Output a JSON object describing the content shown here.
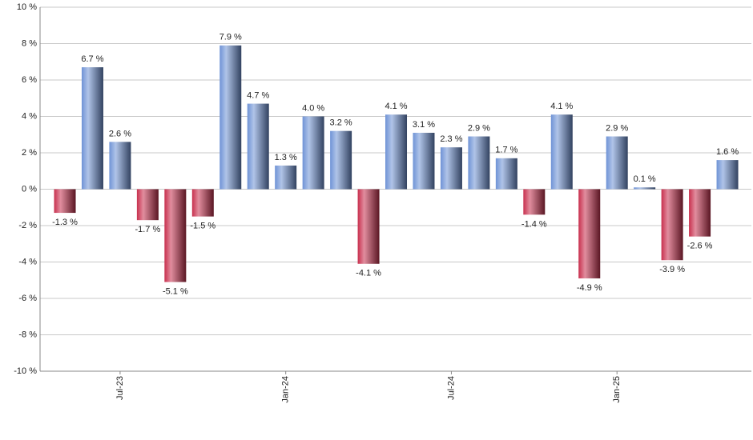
{
  "chart_data": {
    "type": "bar",
    "categories": [
      null,
      null,
      "Jul-23",
      null,
      null,
      null,
      null,
      null,
      "Jan-24",
      null,
      null,
      null,
      null,
      null,
      "Jul-24",
      null,
      null,
      null,
      null,
      null,
      "Jan-25",
      null,
      null,
      null,
      null
    ],
    "values": [
      -1.3,
      6.7,
      2.6,
      -1.7,
      -5.1,
      -1.5,
      7.9,
      4.7,
      1.3,
      4.0,
      3.2,
      -4.1,
      4.1,
      3.1,
      2.3,
      2.9,
      1.7,
      -1.4,
      4.1,
      -4.9,
      2.9,
      0.1,
      -3.9,
      -2.6,
      1.6
    ],
    "value_labels": [
      "-1.3 %",
      "6.7 %",
      "2.6 %",
      "-1.7 %",
      "-5.1 %",
      "-1.5 %",
      "7.9 %",
      "4.7 %",
      "1.3 %",
      "4.0 %",
      "3.2 %",
      "-4.1 %",
      "4.1 %",
      "3.1 %",
      "2.3 %",
      "2.9 %",
      "1.7 %",
      "-1.4 %",
      "4.1 %",
      "-4.9 %",
      "2.9 %",
      "0.1 %",
      "-3.9 %",
      "-2.6 %",
      "1.6 %"
    ],
    "positive_color": "#6f93d6",
    "negative_color": "#c8304e",
    "ylim": [
      -10,
      10
    ],
    "yticks": [
      {
        "value": -10,
        "label": "-10 %"
      },
      {
        "value": -8,
        "label": "-8 %"
      },
      {
        "value": -6,
        "label": "-6 %"
      },
      {
        "value": -4,
        "label": "-4 %"
      },
      {
        "value": -2,
        "label": "-2 %"
      },
      {
        "value": 0,
        "label": "0 %"
      },
      {
        "value": 2,
        "label": "2 %"
      },
      {
        "value": 4,
        "label": "4 %"
      },
      {
        "value": 6,
        "label": "6 %"
      },
      {
        "value": 8,
        "label": "8 %"
      },
      {
        "value": 10,
        "label": "10 %"
      }
    ],
    "grid": true
  }
}
